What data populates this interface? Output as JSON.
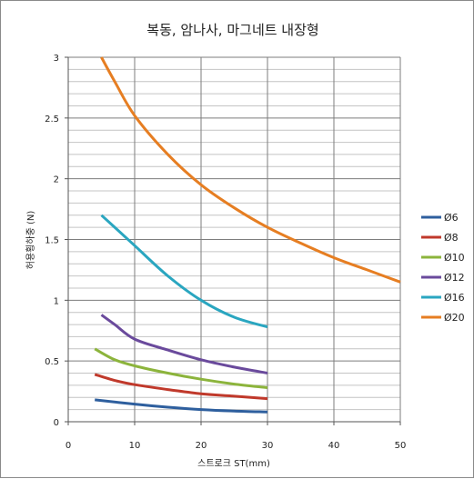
{
  "chart_data": {
    "type": "line",
    "title": "복동, 암나사, 마그네트 내장형",
    "xlabel": "스트로크 ST(mm)",
    "ylabel": "허용횡하중 (N)",
    "xlim": [
      0,
      50
    ],
    "ylim": [
      0,
      3
    ],
    "x_ticks": [
      "0",
      "10",
      "20",
      "30",
      "40",
      "50"
    ],
    "y_ticks": [
      "0",
      "0.5",
      "1",
      "1.5",
      "2",
      "2.5",
      "3"
    ],
    "grid": true,
    "legend_position": "right",
    "series": [
      {
        "name": "Ø6",
        "color": "#2e5f9e",
        "points": [
          [
            4,
            0.18
          ],
          [
            10,
            0.145
          ],
          [
            15,
            0.12
          ],
          [
            20,
            0.1
          ],
          [
            25,
            0.088
          ],
          [
            30,
            0.08
          ]
        ]
      },
      {
        "name": "Ø8",
        "color": "#c0392b",
        "points": [
          [
            4,
            0.39
          ],
          [
            7,
            0.34
          ],
          [
            10,
            0.305
          ],
          [
            15,
            0.265
          ],
          [
            20,
            0.23
          ],
          [
            25,
            0.21
          ],
          [
            30,
            0.19
          ]
        ]
      },
      {
        "name": "Ø10",
        "color": "#8cb43c",
        "points": [
          [
            4,
            0.6
          ],
          [
            7,
            0.51
          ],
          [
            10,
            0.46
          ],
          [
            15,
            0.4
          ],
          [
            20,
            0.35
          ],
          [
            25,
            0.31
          ],
          [
            30,
            0.28
          ]
        ]
      },
      {
        "name": "Ø12",
        "color": "#6a4a9c",
        "points": [
          [
            5,
            0.88
          ],
          [
            7,
            0.8
          ],
          [
            10,
            0.68
          ],
          [
            15,
            0.59
          ],
          [
            20,
            0.51
          ],
          [
            25,
            0.45
          ],
          [
            30,
            0.4
          ]
        ]
      },
      {
        "name": "Ø16",
        "color": "#2aa6c0",
        "points": [
          [
            5,
            1.7
          ],
          [
            7,
            1.6
          ],
          [
            10,
            1.45
          ],
          [
            15,
            1.2
          ],
          [
            20,
            1.0
          ],
          [
            25,
            0.86
          ],
          [
            30,
            0.78
          ]
        ]
      },
      {
        "name": "Ø20",
        "color": "#e67e22",
        "points": [
          [
            5,
            3.0
          ],
          [
            7,
            2.8
          ],
          [
            10,
            2.52
          ],
          [
            15,
            2.2
          ],
          [
            20,
            1.95
          ],
          [
            25,
            1.76
          ],
          [
            30,
            1.6
          ],
          [
            35,
            1.47
          ],
          [
            40,
            1.35
          ],
          [
            45,
            1.25
          ],
          [
            50,
            1.15
          ]
        ]
      }
    ]
  }
}
